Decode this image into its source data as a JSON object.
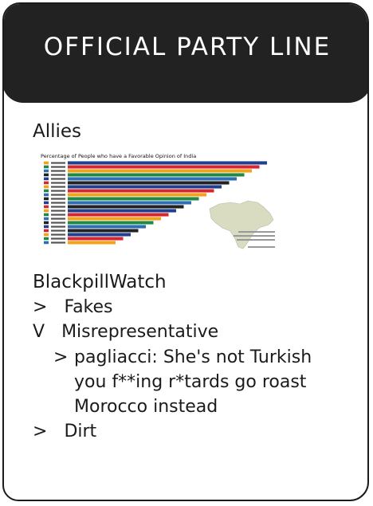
{
  "header": {
    "title": "OFFICIAL PARTY LINE"
  },
  "allies": {
    "title": "Allies",
    "chart_data": {
      "type": "bar",
      "title": "Percentage of People who have a Favorable Opinion of India",
      "bar_colors": [
        "#1f3f8f",
        "#d7262e",
        "#f0a31b",
        "#1e8a43",
        "#2f6db5",
        "#222222"
      ]
    }
  },
  "blackpill": {
    "title": "BlackpillWatch",
    "items": [
      {
        "marker": ">",
        "label": "Fakes"
      },
      {
        "marker": "V",
        "label": "Misrepresentative"
      },
      {
        "marker": ">",
        "lines": [
          "pagliacci: She's not Turkish",
          "you f**ing r*tards go roast",
          "Morocco instead"
        ]
      },
      {
        "marker": ">",
        "label": "Dirt"
      }
    ]
  }
}
